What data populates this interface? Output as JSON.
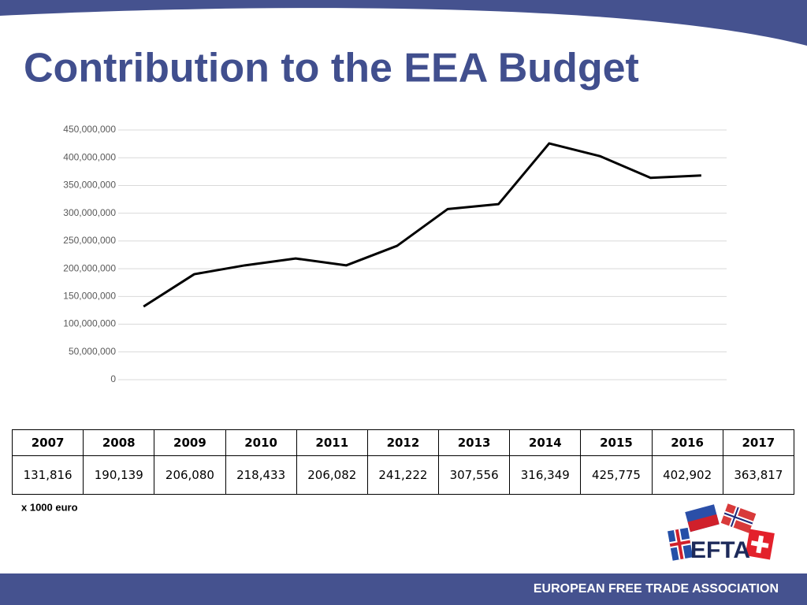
{
  "title": "Contribution to the EEA Budget",
  "chart_data": {
    "type": "line",
    "categories": [
      null,
      null,
      null,
      null,
      null,
      null,
      null,
      null,
      null,
      null,
      null,
      null
    ],
    "series": [
      {
        "color": "#000000",
        "values": [
          131816000,
          190139000,
          206080000,
          218433000,
          206082000,
          241222000,
          307556000,
          316349000,
          425775000,
          402902000,
          363817000,
          368000000
        ]
      }
    ],
    "ylim": [
      0,
      450000000
    ],
    "yticks": [
      0,
      {
        "value": 50000000,
        "label": "50,000,000"
      },
      {
        "value": 100000000,
        "label": "100,000,000"
      },
      {
        "value": 150000000,
        "label": "150,000,000"
      },
      {
        "value": 200000000,
        "label": "200,000,000"
      },
      {
        "value": 250000000,
        "label": "250,000,000"
      },
      {
        "value": 300000000,
        "label": "300,000,000"
      },
      {
        "value": 350000000,
        "label": "350,000,000"
      },
      {
        "value": 400000000,
        "label": "400,000,000"
      },
      {
        "value": 450000000,
        "label": "450,000,000"
      }
    ],
    "grid": true
  },
  "table": {
    "header": [
      "2007",
      "2008",
      "2009",
      "2010",
      "2011",
      "2012",
      "2013",
      "2014",
      "2015",
      "2016",
      "2017"
    ],
    "rows": [
      [
        "131,816",
        "190,139",
        "206,080",
        "218,433",
        "206,082",
        "241,222",
        "307,556",
        "316,349",
        "425,775",
        "402,902",
        "363,817"
      ]
    ]
  },
  "note": "x 1000 euro",
  "logo": "EFTA",
  "footer": "EUROPEAN FREE TRADE ASSOCIATION"
}
